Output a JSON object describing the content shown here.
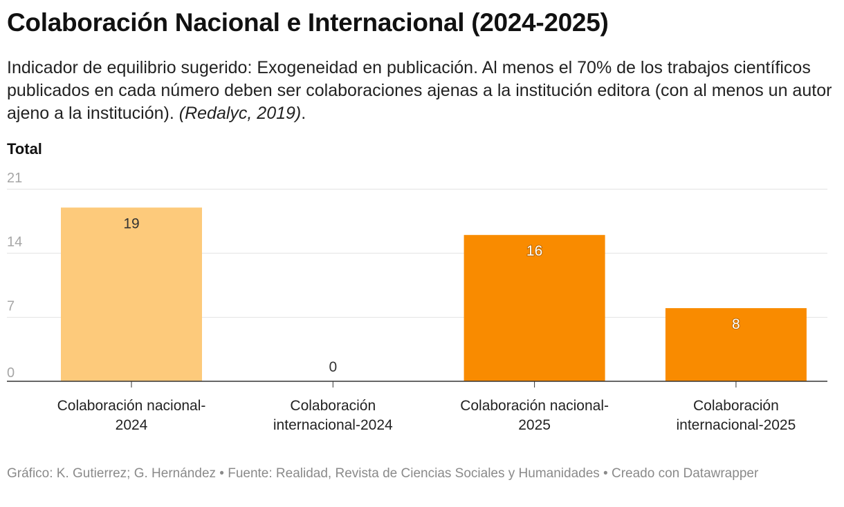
{
  "title": "Colaboración Nacional e Internacional (2024-2025)",
  "subtitle": {
    "text": "Indicador de equilibrio sugerido: Exogeneidad en publicación. Al menos el 70% de los trabajos científicos publicados en cada número deben ser colaboraciones ajenas a la institución editora (con al menos un autor ajeno a la institución). ",
    "citation": "(Redalyc, 2019)",
    "end": "."
  },
  "footer": "Gráfico: K. Gutierrez; G. Hernández • Fuente: Realidad, Revista de Ciencias Sociales y Humanidades • Creado con Datawrapper",
  "colors": {
    "light": "#fdca7b",
    "dark": "#f98b00",
    "grid": "#e2e2e2",
    "axis": "#333333"
  },
  "chart_data": {
    "type": "bar",
    "title": "Colaboración Nacional e Internacional (2024-2025)",
    "ylabel": "Total",
    "xlabel": "",
    "ylim": [
      0,
      21
    ],
    "yticks": [
      0,
      7,
      14,
      21
    ],
    "categories": [
      [
        "Colaboración nacional-",
        "2024"
      ],
      [
        "Colaboración",
        "internacional-2024"
      ],
      [
        "Colaboración nacional-",
        "2025"
      ],
      [
        "Colaboración",
        "internacional-2025"
      ]
    ],
    "values": [
      19,
      0,
      16,
      8
    ],
    "bar_colors": [
      "#fdca7b",
      "#fdca7b",
      "#f98b00",
      "#f98b00"
    ],
    "label_colors": [
      "#333333",
      "#333333",
      "#ffffff",
      "#ffffff"
    ]
  }
}
